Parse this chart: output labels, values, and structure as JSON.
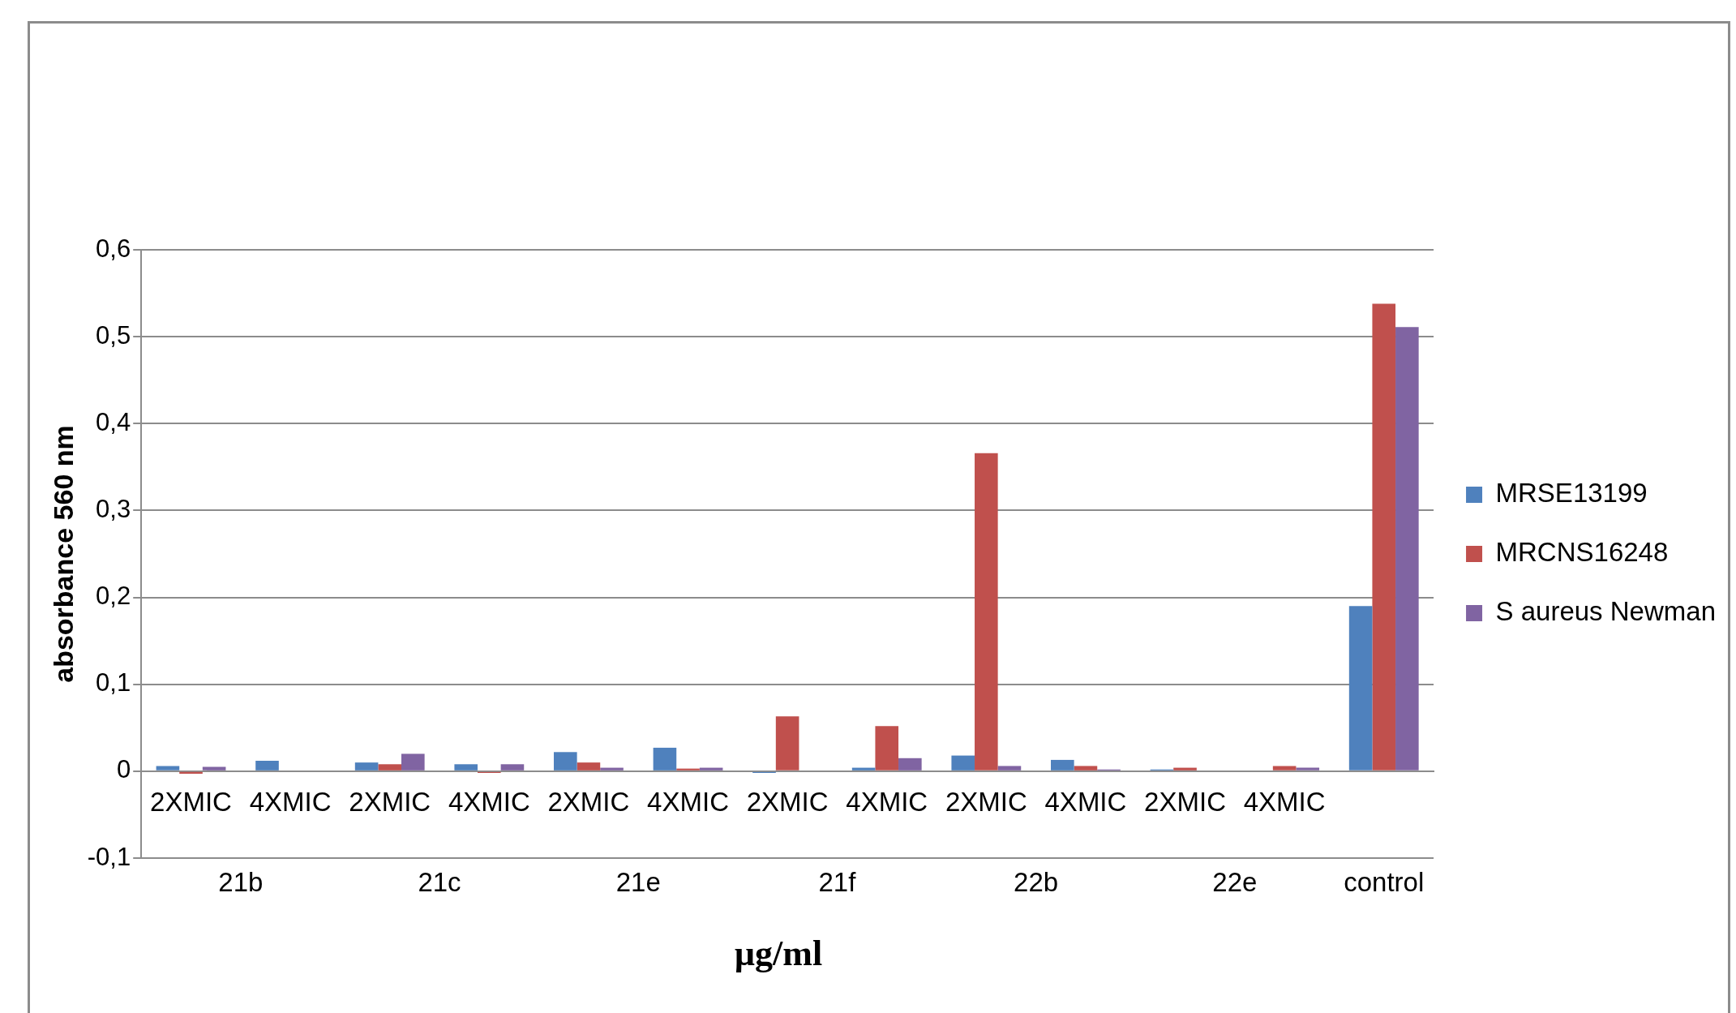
{
  "chart_data": {
    "type": "bar",
    "xlabel": "µg/ml",
    "ylabel": "absorbance 560 nm",
    "categories": [
      "2XMIC",
      "4XMIC",
      "2XMIC",
      "4XMIC",
      "2XMIC",
      "4XMIC",
      "2XMIC",
      "4XMIC",
      "2XMIC",
      "4XMIC",
      "2XMIC",
      "4XMIC",
      null
    ],
    "annotations": [
      "21b",
      "21c",
      "21e",
      "21f",
      "22b",
      "22e",
      "control"
    ],
    "series": [
      {
        "name": "MRSE13199",
        "color": "#4f81bd",
        "values": [
          0.006,
          0.012,
          0.01,
          0.008,
          0.022,
          0.027,
          -0.002,
          0.004,
          0.018,
          0.013,
          0.002,
          0,
          0.19
        ]
      },
      {
        "name": "MRCNS16248",
        "color": "#c0504d",
        "values": [
          -0.003,
          0,
          0.008,
          -0.002,
          0.01,
          0.003,
          0.063,
          0.052,
          0.366,
          0.006,
          0.004,
          0.006,
          0.538
        ]
      },
      {
        "name": "S aureus Newman",
        "color": "#8064a2",
        "values": [
          0.005,
          0,
          0.02,
          0.008,
          0.004,
          0.004,
          0,
          0.015,
          0.006,
          0.002,
          0,
          0.004,
          0.511
        ]
      }
    ],
    "ylim": [
      -0.1,
      0.6
    ],
    "yticks": [
      {
        "value": -0.1,
        "label": "-0,1"
      },
      0,
      {
        "value": 0.1,
        "label": "0,1"
      },
      {
        "value": 0.2,
        "label": "0,2"
      },
      {
        "value": 0.3,
        "label": "0,3"
      },
      {
        "value": 0.4,
        "label": "0,4"
      },
      {
        "value": 0.5,
        "label": "0,5"
      },
      {
        "value": 0.6,
        "label": "0,6"
      }
    ],
    "grid": "y",
    "legend": "right"
  }
}
